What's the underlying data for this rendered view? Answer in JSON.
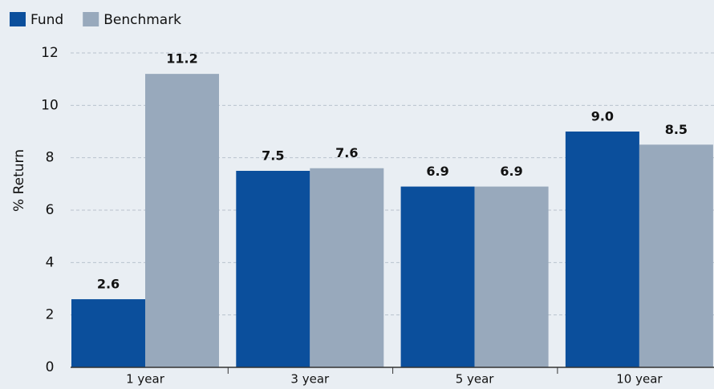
{
  "chart_data": {
    "type": "bar",
    "categories": [
      "1 year",
      "3 year",
      "5 year",
      "10 year"
    ],
    "series": [
      {
        "name": "Fund",
        "color": "#0b4f9c",
        "values": [
          2.6,
          7.5,
          6.9,
          9.0
        ],
        "value_labels": [
          "2.6",
          "7.5",
          "6.9",
          "9.0"
        ]
      },
      {
        "name": "Benchmark",
        "color": "#98a9bc",
        "values": [
          11.2,
          7.6,
          6.9,
          8.5
        ],
        "value_labels": [
          "11.2",
          "7.6",
          "6.9",
          "8.5"
        ]
      }
    ],
    "y_axis_label": "% Return",
    "ylim": [
      0,
      12
    ],
    "yticks": [
      0,
      2,
      4,
      6,
      8,
      10,
      12
    ],
    "grid": true,
    "legend": "top-left"
  }
}
